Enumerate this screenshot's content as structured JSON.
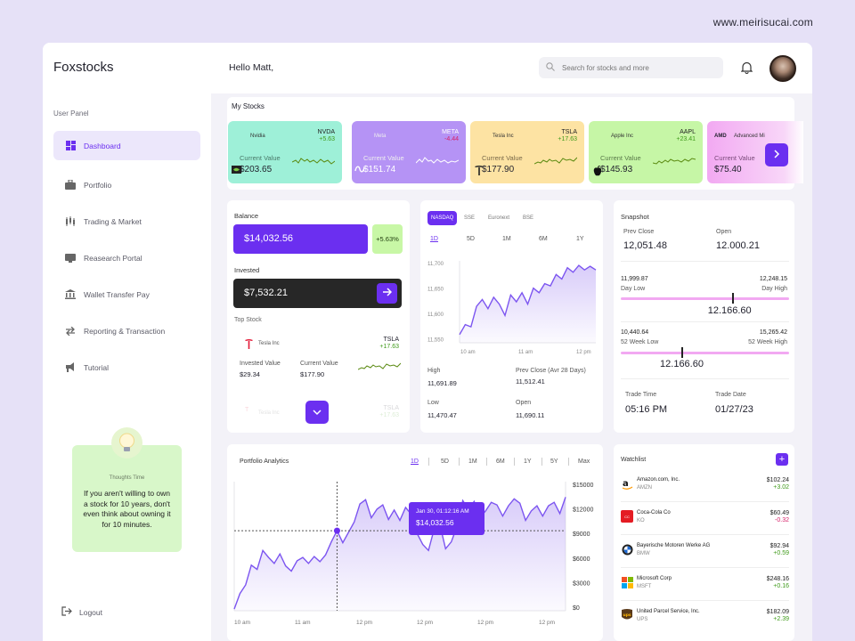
{
  "watermark": "www.meirisucai.com",
  "sidebar": {
    "logo": "Foxstocks",
    "caption": "User Panel",
    "items": [
      {
        "label": "Dashboard"
      },
      {
        "label": "Portfolio"
      },
      {
        "label": "Trading & Market"
      },
      {
        "label": "Reasearch Portal"
      },
      {
        "label": "Wallet Transfer Pay"
      },
      {
        "label": "Reporting & Transaction"
      },
      {
        "label": "Tutorial"
      }
    ],
    "tip_caption": "Thoughts Time",
    "tip_text": "If you aren't willing to own a stock for 10 years, don't even think about owning it for 10 minutes.",
    "logout": "Logout"
  },
  "header": {
    "greeting": "Hello Matt,",
    "search_placeholder": "Search for stocks and more"
  },
  "my_stocks": {
    "title": "My Stocks",
    "cards": [
      {
        "name": "Nvidia",
        "ticker": "NVDA",
        "change": "+5.63",
        "label": "Current Value",
        "price": "$203.65",
        "bg": "#9ef0d8"
      },
      {
        "name": "Meta",
        "ticker": "META",
        "change": "-4.44",
        "label": "Current Value",
        "price": "$151.74",
        "bg": "#b593f5"
      },
      {
        "name": "Tesla Inc",
        "ticker": "TSLA",
        "change": "+17.63",
        "label": "Current Value",
        "price": "$177.90",
        "bg": "#fde3a3"
      },
      {
        "name": "Apple Inc",
        "ticker": "AAPL",
        "change": "+23.41",
        "label": "Current Value",
        "price": "$145.93",
        "bg": "#c6f6a6"
      },
      {
        "name": "Advanced Mi",
        "ticker": "",
        "change": "",
        "label": "Current Value",
        "price": "$75.40",
        "bg": "#f2a9f2"
      }
    ]
  },
  "balance": {
    "label": "Balance",
    "value": "$14,032.56",
    "pct": "+5.63%",
    "invested_label": "Invested",
    "invested": "$7,532.21",
    "top_label": "Top Stock",
    "top": {
      "name": "Tesla Inc",
      "ticker": "TSLA",
      "change": "+17.63",
      "inv_label": "Invested Value",
      "inv": "$29.34",
      "cur_label": "Current Value",
      "cur": "$177.90"
    },
    "faded": {
      "name": "Tesla Inc",
      "ticker": "TSLA",
      "change": "+17.63"
    }
  },
  "exchange": {
    "tabs": [
      "NASDAQ",
      "SSE",
      "Euronext",
      "BSE"
    ],
    "ranges": [
      "1D",
      "5D",
      "1M",
      "6M",
      "1Y"
    ],
    "high_label": "High",
    "high": "11,691.89",
    "prev_label": "Prev Close (Avr 28 Days)",
    "prev": "11,512.41",
    "low_label": "Low",
    "low": "11,470.47",
    "open_label": "Open",
    "open": "11,690.11"
  },
  "snapshot": {
    "title": "Snapshot",
    "prev_close_label": "Prev Close",
    "prev_close": "12,051.48",
    "open_label": "Open",
    "open": "12.000.21",
    "day_low": "11,999.87",
    "day_low_label": "Day Low",
    "day_high": "12,248.15",
    "day_high_label": "Day High",
    "day_value": "12.166.60",
    "day_pos": 0.66,
    "wk_low": "10,440.64",
    "wk_low_label": "52 Week Low",
    "wk_high": "15,265.42",
    "wk_high_label": "52 Week High",
    "wk_value": "12.166.60",
    "wk_pos": 0.36,
    "trade_time_label": "Trade Time",
    "trade_time": "05:16 PM",
    "trade_date_label": "Trade Date",
    "trade_date": "01/27/23"
  },
  "analytics": {
    "title": "Portfolio Analytics",
    "ranges": [
      "1D",
      "5D",
      "1M",
      "6M",
      "1Y",
      "5Y",
      "Max"
    ],
    "tooltip_date": "Jan 30, 01:12:16 AM",
    "tooltip_value": "$14,032.56"
  },
  "watchlist": {
    "title": "Watchlist",
    "rows": [
      {
        "name": "Amazon.com, Inc.",
        "ticker": "AMZN",
        "price": "$102.24",
        "change": "+3.02",
        "up": true
      },
      {
        "name": "Coca-Cola Co",
        "ticker": "KO",
        "price": "$60.49",
        "change": "-0.32",
        "up": false
      },
      {
        "name": "Bayerische Motoren Werke AG",
        "ticker": "BMW",
        "price": "$92.94",
        "change": "+0.59",
        "up": true
      },
      {
        "name": "Microsoft Corp",
        "ticker": "MSFT",
        "price": "$248.16",
        "change": "+0.16",
        "up": true
      },
      {
        "name": "United Parcel Service, Inc.",
        "ticker": "UPS",
        "price": "$182.09",
        "change": "+2.39",
        "up": true
      }
    ]
  },
  "chart_data": [
    {
      "type": "area",
      "x_labels": [
        "10 am",
        "11 am",
        "12 pm"
      ],
      "y_ticks": [
        "11,700",
        "11,650",
        "11,600",
        "11,550"
      ],
      "ylim": [
        11530,
        11710
      ],
      "values": [
        11548,
        11570,
        11565,
        11610,
        11625,
        11605,
        11630,
        11615,
        11590,
        11635,
        11620,
        11640,
        11615,
        11650,
        11640,
        11660,
        11655,
        11680,
        11670,
        11695,
        11685,
        11700,
        11690,
        11698,
        11690
      ]
    },
    {
      "type": "area",
      "x_labels": [
        "10 am",
        "11 am",
        "12 pm",
        "12 pm",
        "12 pm",
        "12 pm",
        "12 pm"
      ],
      "y_ticks": [
        "$15000",
        "$12000",
        "$9000",
        "$6000",
        "$3000",
        "$0"
      ],
      "ylim": [
        0,
        15000
      ],
      "values": [
        200,
        2000,
        3000,
        5300,
        4800,
        7000,
        6200,
        5500,
        6600,
        5200,
        4600,
        5800,
        6200,
        5500,
        6300,
        5700,
        6500,
        8000,
        9300,
        7900,
        9100,
        10300,
        12400,
        12900,
        10800,
        11800,
        12300,
        10600,
        11700,
        10500,
        12000,
        11200,
        9000,
        7700,
        7000,
        9500,
        10000,
        7200,
        8000,
        9800,
        12800,
        11800,
        12700,
        10800,
        11600,
        12600,
        12300,
        11000,
        12200,
        13000,
        12500,
        10500,
        11600,
        12200,
        11000,
        12200,
        12600,
        11300,
        13200
      ]
    }
  ]
}
